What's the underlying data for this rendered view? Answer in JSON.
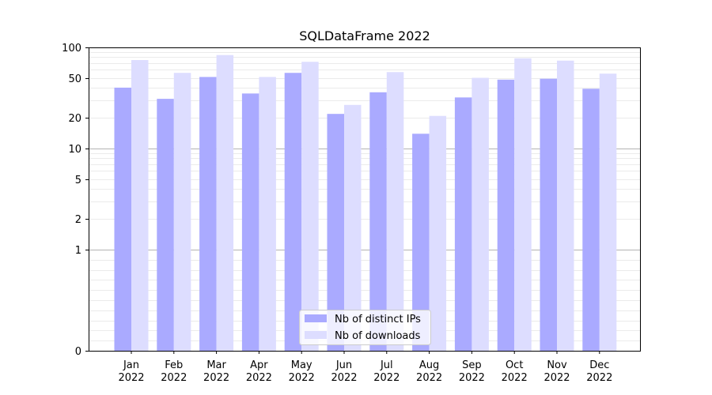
{
  "chart_data": {
    "type": "bar",
    "title": "SQLDataFrame 2022",
    "xlabel": "",
    "ylabel": "",
    "yscale": "symlog",
    "ylim": [
      0,
      100
    ],
    "yticks": [
      "0",
      "1",
      "2",
      "5",
      "10",
      "20",
      "50",
      "100"
    ],
    "categories": [
      {
        "month": "Jan",
        "year": "2022"
      },
      {
        "month": "Feb",
        "year": "2022"
      },
      {
        "month": "Mar",
        "year": "2022"
      },
      {
        "month": "Apr",
        "year": "2022"
      },
      {
        "month": "May",
        "year": "2022"
      },
      {
        "month": "Jun",
        "year": "2022"
      },
      {
        "month": "Jul",
        "year": "2022"
      },
      {
        "month": "Aug",
        "year": "2022"
      },
      {
        "month": "Sep",
        "year": "2022"
      },
      {
        "month": "Oct",
        "year": "2022"
      },
      {
        "month": "Nov",
        "year": "2022"
      },
      {
        "month": "Dec",
        "year": "2022"
      }
    ],
    "series": [
      {
        "name": "Nb of distinct IPs",
        "color": "#aaaaff",
        "values": [
          40,
          31,
          51,
          35,
          56,
          22,
          36,
          14,
          32,
          48,
          49,
          39
        ]
      },
      {
        "name": "Nb of downloads",
        "color": "#ddddff",
        "values": [
          75,
          56,
          84,
          51,
          72,
          27,
          57,
          21,
          50,
          78,
          74,
          55
        ]
      }
    ],
    "grid": true,
    "legend_position": "bottom-center"
  }
}
